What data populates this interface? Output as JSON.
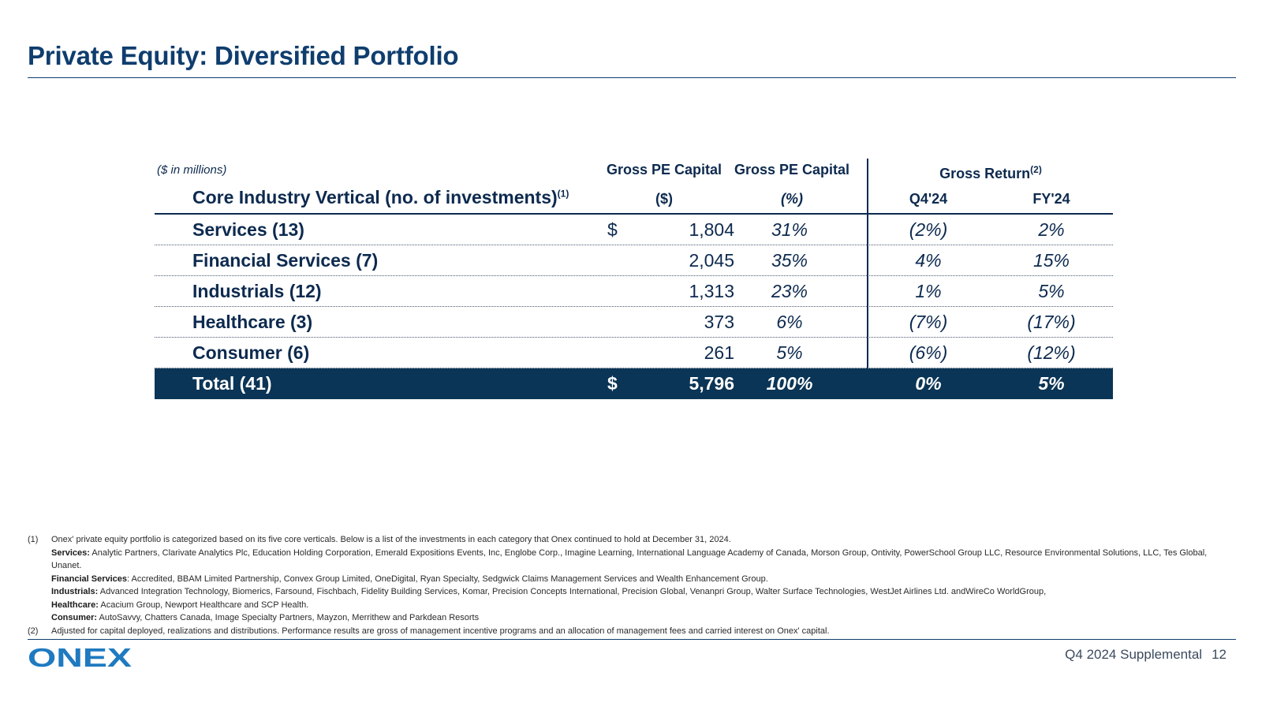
{
  "page": {
    "title": "Private Equity: Diversified Portfolio",
    "footer_label": "Q4 2024 Supplemental",
    "page_number": "12",
    "logo_text": "ONEX"
  },
  "table": {
    "units_note": "($ in millions)",
    "row_header": "Core Industry Vertical (no. of investments)",
    "row_header_footnote": "(1)",
    "col_capital_title": "Gross PE Capital",
    "col_capital_unit": "($)",
    "col_pct_title": "Gross PE Capital",
    "col_pct_unit": "(%)",
    "col_return_title": "Gross Return",
    "col_return_footnote": "(2)",
    "col_q4": "Q4'24",
    "col_fy": "FY'24",
    "rows": [
      {
        "name": "Services (13)",
        "dollar": "$",
        "amount": "1,804",
        "pct": "31%",
        "q4": "(2%)",
        "fy": "2%"
      },
      {
        "name": "Financial Services (7)",
        "dollar": "",
        "amount": "2,045",
        "pct": "35%",
        "q4": "4%",
        "fy": "15%"
      },
      {
        "name": "Industrials (12)",
        "dollar": "",
        "amount": "1,313",
        "pct": "23%",
        "q4": "1%",
        "fy": "5%"
      },
      {
        "name": "Healthcare (3)",
        "dollar": "",
        "amount": "373",
        "pct": "6%",
        "q4": "(7%)",
        "fy": "(17%)"
      },
      {
        "name": "Consumer (6)",
        "dollar": "",
        "amount": "261",
        "pct": "5%",
        "q4": "(6%)",
        "fy": "(12%)"
      }
    ],
    "total": {
      "name": "Total (41)",
      "dollar": "$",
      "amount": "5,796",
      "pct": "100%",
      "q4": "0%",
      "fy": "5%"
    }
  },
  "footnotes": {
    "n1_num": "(1)",
    "n1_text": "Onex' private equity portfolio is categorized based on its five core verticals.  Below is a list of the investments in each category that Onex continued to hold at December 31, 2024.",
    "services_label": "Services:",
    "services_text": " Analytic Partners, Clarivate Analytics Plc, Education Holding Corporation, Emerald Expositions Events, Inc, Englobe Corp., Imagine Learning, International Language Academy of Canada, Morson Group, Ontivity, PowerSchool Group LLC, Resource Environmental Solutions, LLC, Tes Global, Unanet.",
    "financial_label": "Financial Services",
    "financial_text": ": Accredited, BBAM Limited Partnership, Convex Group Limited, OneDigital, Ryan Specialty, Sedgwick Claims Management Services and Wealth Enhancement Group.",
    "industrials_label": "Industrials:",
    "industrials_text": " Advanced Integration Technology, Biomerics, Farsound, Fischbach, Fidelity Building Services, Komar, Precision Concepts International, Precision Global, Venanpri Group, Walter Surface Technologies, WestJet Airlines Ltd. andWireCo WorldGroup,",
    "healthcare_label": "Healthcare:",
    "healthcare_text": " Acacium Group, Newport Healthcare and SCP Health.",
    "consumer_label": "Consumer:",
    "consumer_text": " AutoSavvy, Chatters Canada, Image Specialty Partners, Mayzon, Merrithew and Parkdean Resorts",
    "n2_num": "(2)",
    "n2_text": "Adjusted for capital deployed, realizations and distributions. Performance results are gross of management incentive programs and an allocation of management fees and carried interest on Onex' capital."
  },
  "colors": {
    "brand_navy": "#0f3d6e",
    "total_row_bg": "#0b3556",
    "logo_blue": "#1f7ac0"
  }
}
